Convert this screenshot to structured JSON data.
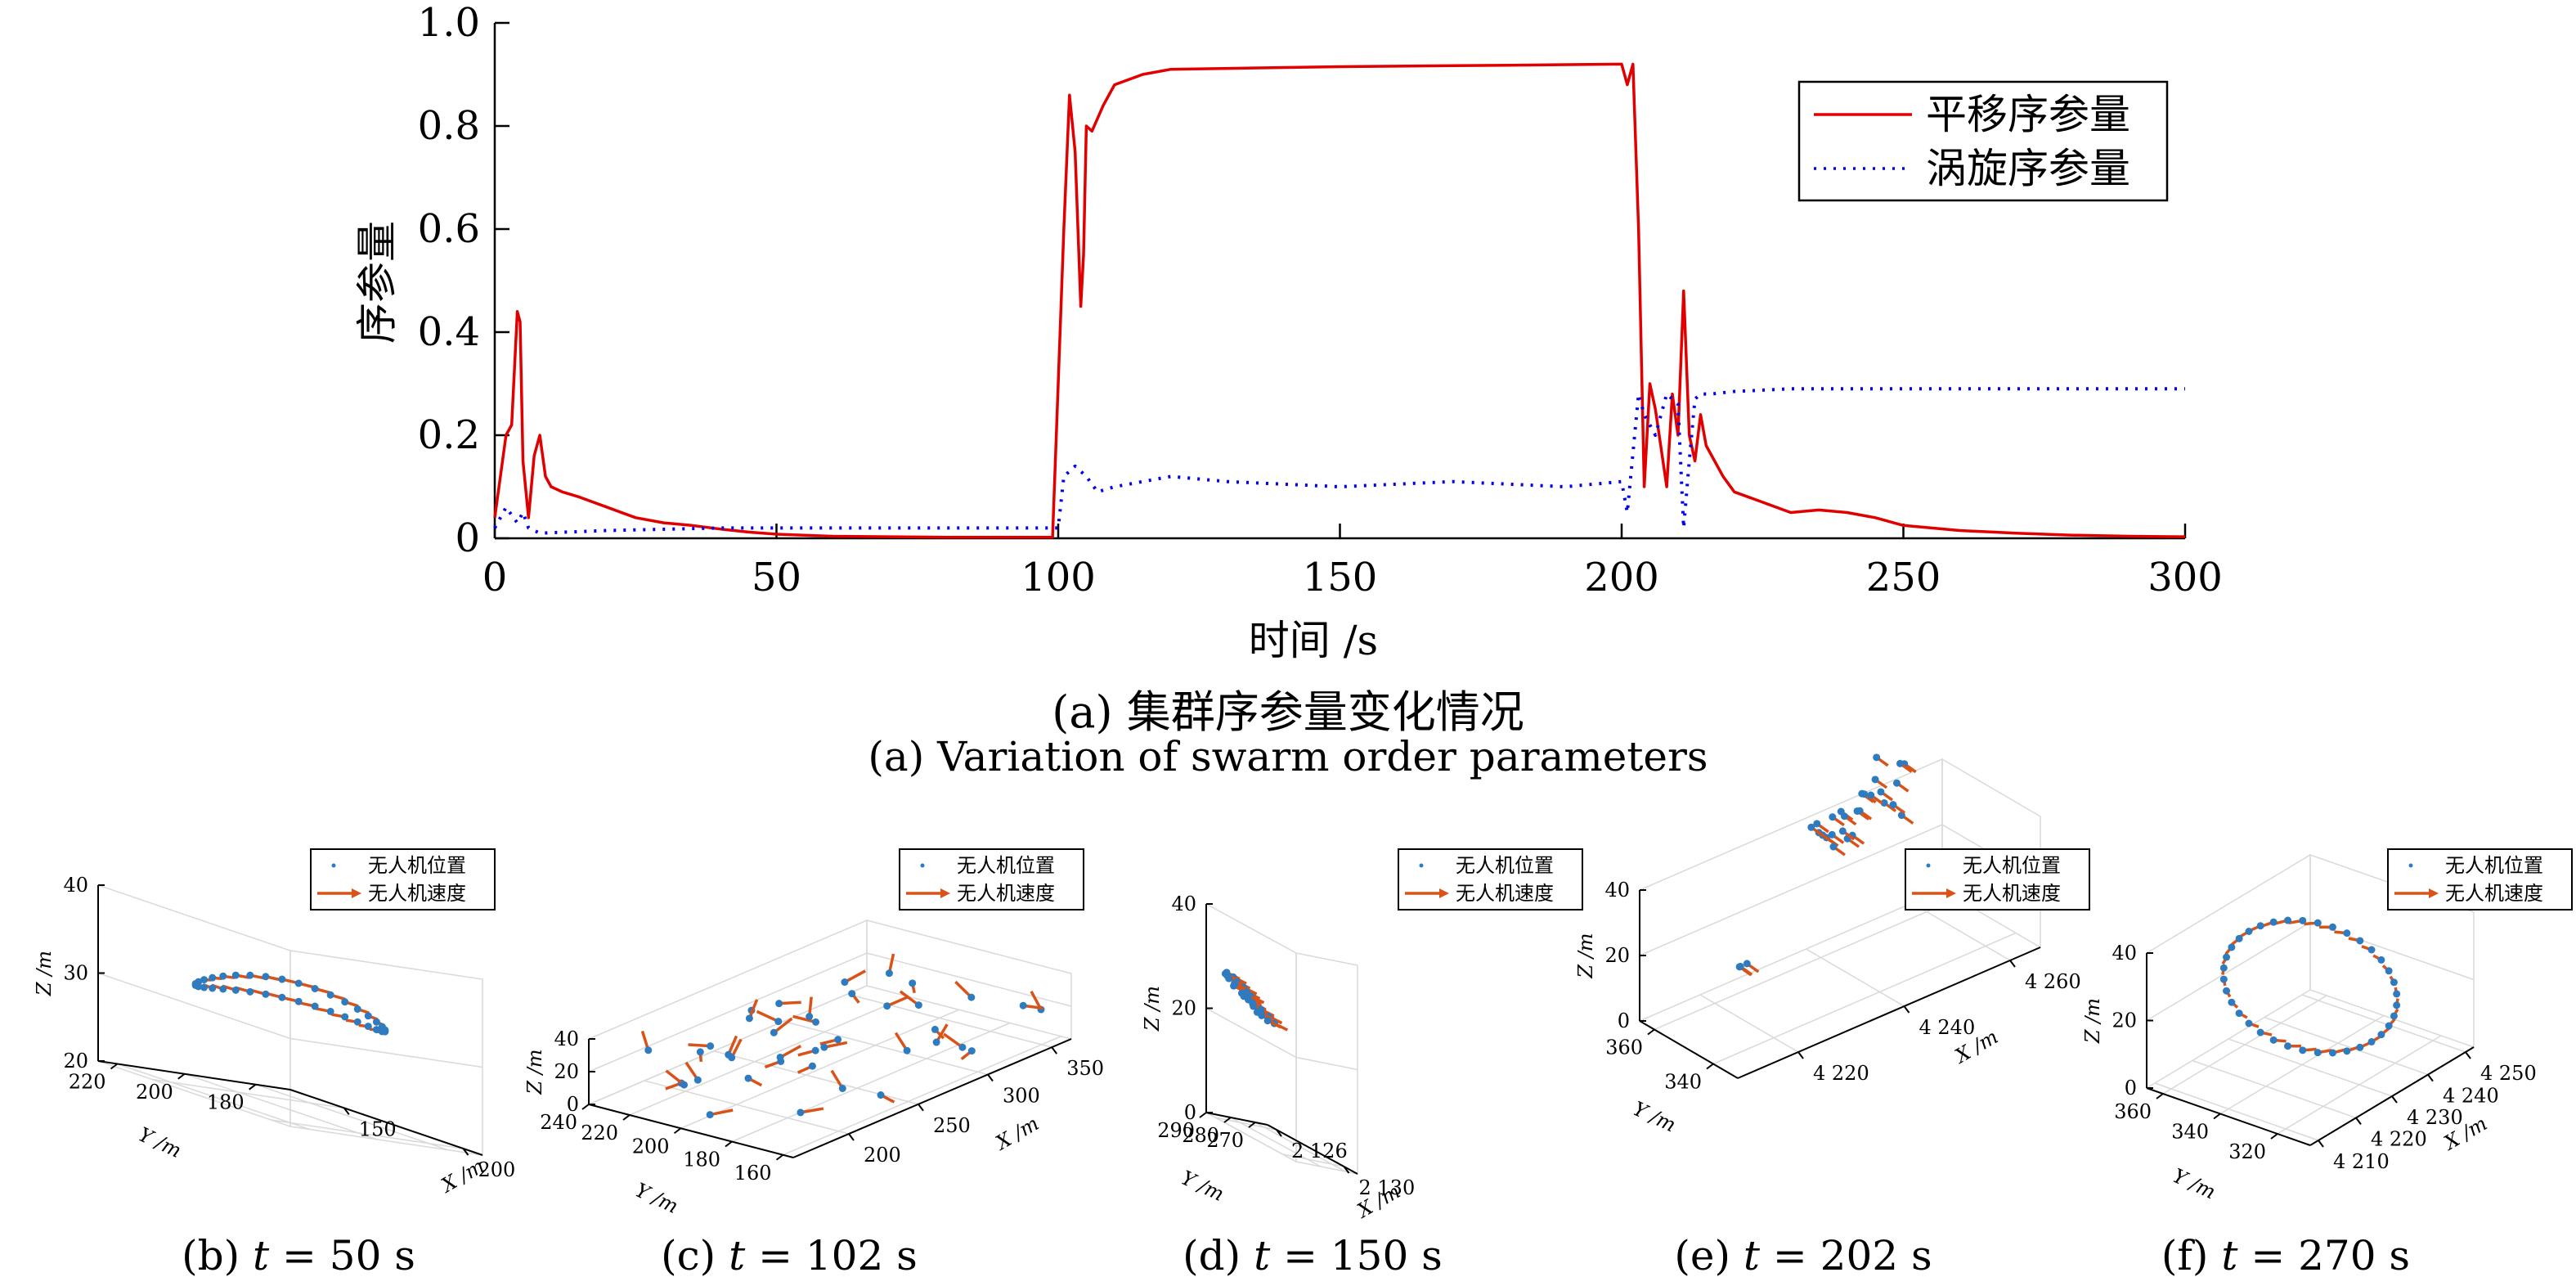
{
  "chart_data": [
    {
      "type": "line",
      "panel": "a",
      "title": "",
      "xlabel": "时间 /s",
      "ylabel": "序参量",
      "xlim": [
        0,
        300
      ],
      "ylim": [
        0,
        1.0
      ],
      "xticks": [
        "0",
        "50",
        "100",
        "150",
        "200",
        "250",
        "300"
      ],
      "yticks": [
        "0",
        "0.2",
        "0.4",
        "0.6",
        "0.8",
        "1.0"
      ],
      "grid": false,
      "legend_position": "top-right",
      "series": [
        {
          "name": "平移序参量",
          "color": "#e00000",
          "style": "solid",
          "x": [
            0,
            1,
            2,
            3,
            4,
            4.5,
            5,
            6,
            7,
            8,
            9,
            10,
            12,
            15,
            20,
            25,
            30,
            35,
            40,
            45,
            50,
            60,
            80,
            99,
            100,
            101,
            102,
            103,
            104,
            104.5,
            105,
            106,
            108,
            110,
            115,
            120,
            150,
            180,
            200,
            201,
            202,
            203,
            204,
            205,
            206,
            208,
            209,
            210,
            211,
            212,
            213,
            214,
            215,
            218,
            220,
            225,
            230,
            235,
            240,
            245,
            250,
            260,
            270,
            280,
            290,
            300
          ],
          "y": [
            0.04,
            0.12,
            0.2,
            0.22,
            0.44,
            0.42,
            0.15,
            0.04,
            0.16,
            0.2,
            0.12,
            0.1,
            0.09,
            0.08,
            0.06,
            0.04,
            0.03,
            0.025,
            0.018,
            0.012,
            0.008,
            0.004,
            0.002,
            0.002,
            0.3,
            0.6,
            0.86,
            0.75,
            0.45,
            0.55,
            0.8,
            0.79,
            0.84,
            0.88,
            0.9,
            0.91,
            0.915,
            0.918,
            0.92,
            0.88,
            0.92,
            0.6,
            0.1,
            0.3,
            0.25,
            0.1,
            0.28,
            0.2,
            0.48,
            0.2,
            0.15,
            0.24,
            0.18,
            0.12,
            0.09,
            0.07,
            0.05,
            0.055,
            0.05,
            0.04,
            0.025,
            0.015,
            0.01,
            0.006,
            0.004,
            0.003
          ]
        },
        {
          "name": "涡旋序参量",
          "color": "#0000ee",
          "style": "dotted",
          "x": [
            0,
            2,
            4,
            5,
            6,
            8,
            20,
            40,
            50,
            60,
            80,
            99,
            100,
            101,
            103,
            105,
            107,
            110,
            115,
            120,
            130,
            150,
            170,
            190,
            200,
            201,
            203,
            204,
            206,
            208,
            210,
            211,
            212,
            213,
            214,
            216,
            220,
            230,
            260,
            300
          ],
          "y": [
            0.02,
            0.06,
            0.03,
            0.05,
            0.02,
            0.01,
            0.015,
            0.02,
            0.02,
            0.02,
            0.02,
            0.02,
            0.02,
            0.12,
            0.14,
            0.12,
            0.09,
            0.1,
            0.11,
            0.12,
            0.11,
            0.1,
            0.11,
            0.1,
            0.11,
            0.05,
            0.28,
            0.24,
            0.2,
            0.28,
            0.26,
            0.02,
            0.15,
            0.27,
            0.28,
            0.28,
            0.285,
            0.29,
            0.29,
            0.29
          ]
        }
      ],
      "caption_cn": "(a) 集群序参量变化情况",
      "caption_en": "(a) Variation of swarm order parameters"
    },
    {
      "type": "scatter",
      "panel": "b",
      "xlabel": "X /m",
      "ylabel": "Y /m",
      "zlabel": "Z /m",
      "xticks": [
        "150",
        "200"
      ],
      "yticks": [
        "180",
        "200",
        "220"
      ],
      "zticks": [
        "20",
        "30",
        "40"
      ],
      "series": [
        {
          "name": "无人机位置",
          "color": "#2f7bbf"
        },
        {
          "name": "无人机速度",
          "color": "#d95319"
        }
      ],
      "caption_label": "(b) ",
      "caption_math": "t",
      "caption_value": " = 50 s"
    },
    {
      "type": "scatter",
      "panel": "c",
      "xlabel": "X /m",
      "ylabel": "Y /m",
      "zlabel": "Z /m",
      "xticks": [
        "200",
        "250",
        "300",
        "350"
      ],
      "yticks": [
        "160",
        "180",
        "200",
        "220",
        "240"
      ],
      "zticks": [
        "0",
        "20",
        "40"
      ],
      "series": [
        {
          "name": "无人机位置",
          "color": "#2f7bbf"
        },
        {
          "name": "无人机速度",
          "color": "#d95319"
        }
      ],
      "caption_label": "(c) ",
      "caption_math": "t",
      "caption_value": " = 102 s"
    },
    {
      "type": "scatter",
      "panel": "d",
      "xlabel": "X /m",
      "ylabel": "Y /m",
      "zlabel": "Z /m",
      "xticks": [
        "2 126",
        "2 130"
      ],
      "yticks": [
        "270",
        "280",
        "290"
      ],
      "zticks": [
        "0",
        "20",
        "40"
      ],
      "series": [
        {
          "name": "无人机位置",
          "color": "#2f7bbf"
        },
        {
          "name": "无人机速度",
          "color": "#d95319"
        }
      ],
      "caption_label": "(d) ",
      "caption_math": "t",
      "caption_value": " = 150 s"
    },
    {
      "type": "scatter",
      "panel": "e",
      "xlabel": "X /m",
      "ylabel": "Y /m",
      "zlabel": "Z /m",
      "xticks": [
        "4 220",
        "4 240",
        "4 260"
      ],
      "yticks": [
        "340",
        "360"
      ],
      "zticks": [
        "0",
        "20",
        "40"
      ],
      "series": [
        {
          "name": "无人机位置",
          "color": "#2f7bbf"
        },
        {
          "name": "无人机速度",
          "color": "#d95319"
        }
      ],
      "caption_label": "(e) ",
      "caption_math": "t",
      "caption_value": " = 202 s"
    },
    {
      "type": "scatter",
      "panel": "f",
      "xlabel": "X /m",
      "ylabel": "Y /m",
      "zlabel": "Z /m",
      "xticks": [
        "4 210",
        "4 220",
        "4 230",
        "4 240",
        "4 250"
      ],
      "yticks": [
        "320",
        "340",
        "360"
      ],
      "zticks": [
        "0",
        "20",
        "40"
      ],
      "series": [
        {
          "name": "无人机位置",
          "color": "#2f7bbf"
        },
        {
          "name": "无人机速度",
          "color": "#d95319"
        }
      ],
      "caption_label": "(f) ",
      "caption_math": "t",
      "caption_value": " = 270 s"
    }
  ]
}
